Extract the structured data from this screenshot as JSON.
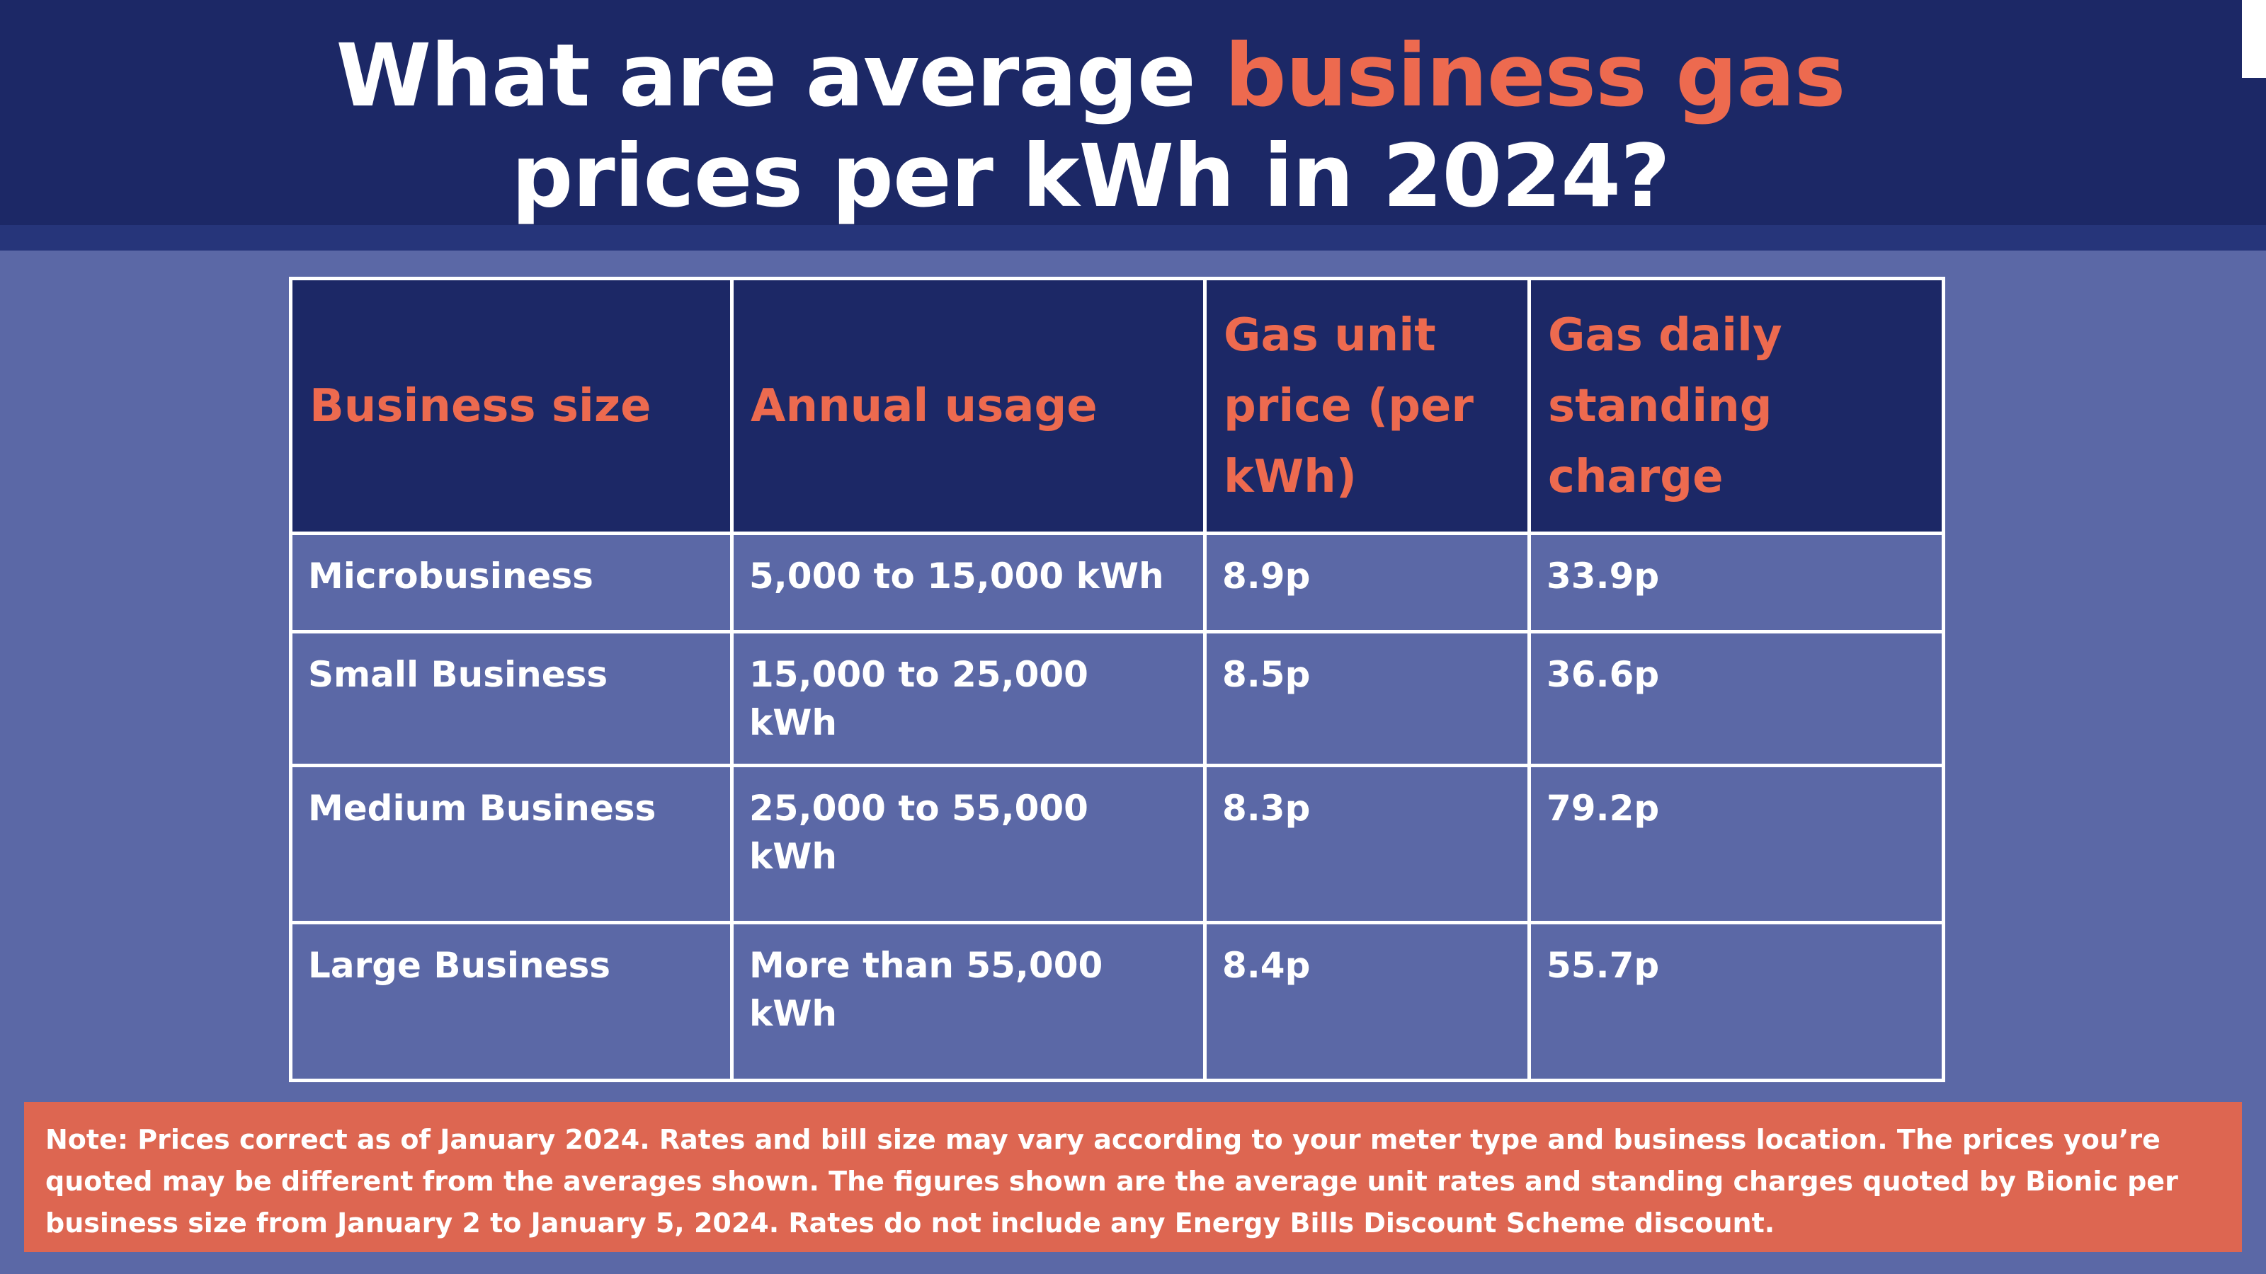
{
  "title": {
    "part1": "What are average ",
    "accent": "business gas",
    "part2": "prices per kWh in 2024?"
  },
  "table": {
    "headers": [
      "Business size",
      "Annual usage",
      "Gas unit price (per kWh)",
      "Gas daily standing charge"
    ],
    "rows": [
      [
        "Microbusiness",
        "5,000 to 15,000 kWh",
        "8.9p",
        "33.9p"
      ],
      [
        "Small Business",
        "15,000 to 25,000 kWh",
        "8.5p",
        "36.6p"
      ],
      [
        "Medium Business",
        "25,000 to 55,000 kWh",
        "8.3p",
        "79.2p"
      ],
      [
        "Large Business",
        "More than 55,000 kWh",
        "8.4p",
        "55.7p"
      ]
    ]
  },
  "note": "Note: Prices correct as of January 2024. Rates and bill size may vary according to your meter type and business location. The prices you’re quoted may be different from the averages shown. The figures shown are the average unit rates and standing charges quoted by Bionic per business size from January 2 to January 5, 2024. Rates do not include any Energy Bills Discount Scheme discount.",
  "colors": {
    "header_bg": "#1c2866",
    "body_bg": "#5b68a6",
    "accent": "#ed6a4f",
    "note_bg": "#dd6651"
  }
}
